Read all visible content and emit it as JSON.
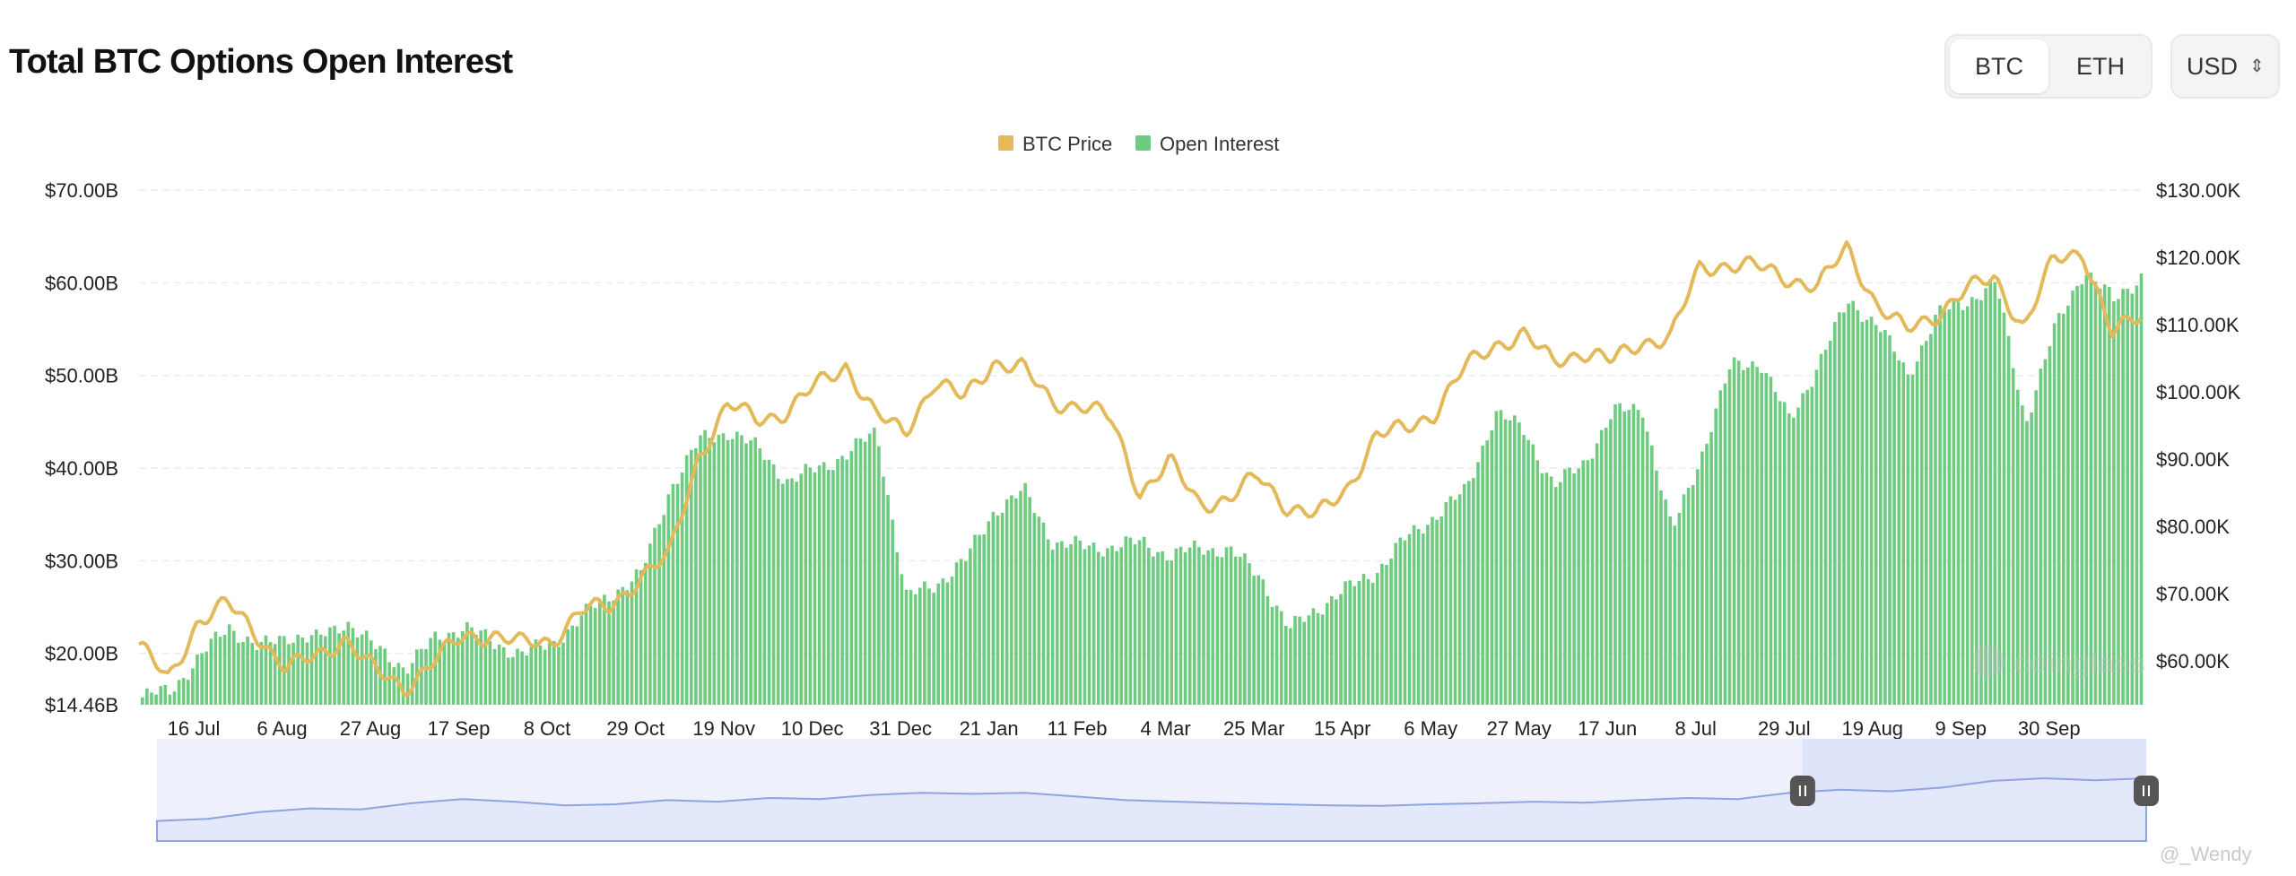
{
  "header": {
    "title": "Total BTC Options Open Interest",
    "assets": [
      "BTC",
      "ETH"
    ],
    "selected_asset": "BTC",
    "currency": "USD",
    "currency_icon": "chevron-updown-icon"
  },
  "watermark": {
    "brand": "coinglass",
    "credit": "@_Wendy"
  },
  "chart_data": {
    "type": "bar",
    "title": "Total BTC Options Open Interest",
    "legend": {
      "position": "top-center",
      "items": [
        "BTC Price",
        "Open Interest"
      ]
    },
    "colors": {
      "btc_price": "#e3b95a",
      "open_interest": "#6ecb80",
      "navigator": "#8fa3e0"
    },
    "grid": true,
    "x_tick_labels": [
      "16 Jul",
      "6 Aug",
      "27 Aug",
      "17 Sep",
      "8 Oct",
      "29 Oct",
      "19 Nov",
      "10 Dec",
      "31 Dec",
      "21 Jan",
      "11 Feb",
      "4 Mar",
      "25 Mar",
      "15 Apr",
      "6 May",
      "27 May",
      "17 Jun",
      "8 Jul",
      "29 Jul",
      "19 Aug",
      "9 Sep",
      "30 Sep"
    ],
    "y_left": {
      "label": "",
      "tick_labels": [
        "$70.00B",
        "$60.00B",
        "$50.00B",
        "$40.00B",
        "$30.00B",
        "$20.00B",
        "$14.46B"
      ],
      "ticks": [
        70,
        60,
        50,
        40,
        30,
        20,
        14.46
      ],
      "min": 14.46,
      "max": 70,
      "unit": "B USD"
    },
    "y_right": {
      "label": "",
      "tick_labels": [
        "$130.00K",
        "$120.00K",
        "$110.00K",
        "$100.00K",
        "$90.00K",
        "$80.00K",
        "$70.00K",
        "$60.00K"
      ],
      "ticks": [
        130,
        120,
        110,
        100,
        90,
        80,
        70,
        60
      ],
      "min": 53.5,
      "max": 130,
      "unit": "K USD"
    },
    "dates": [
      "2024-07-03",
      "2024-07-10",
      "2024-07-17",
      "2024-07-24",
      "2024-07-31",
      "2024-08-07",
      "2024-08-14",
      "2024-08-21",
      "2024-08-28",
      "2024-09-04",
      "2024-09-11",
      "2024-09-18",
      "2024-09-25",
      "2024-10-02",
      "2024-10-09",
      "2024-10-16",
      "2024-10-23",
      "2024-10-30",
      "2024-11-06",
      "2024-11-13",
      "2024-11-20",
      "2024-11-27",
      "2024-12-04",
      "2024-12-11",
      "2024-12-18",
      "2024-12-25",
      "2025-01-01",
      "2025-01-08",
      "2025-01-15",
      "2025-01-22",
      "2025-01-29",
      "2025-02-05",
      "2025-02-12",
      "2025-02-19",
      "2025-02-26",
      "2025-03-05",
      "2025-03-12",
      "2025-03-19",
      "2025-03-26",
      "2025-04-02",
      "2025-04-09",
      "2025-04-16",
      "2025-04-23",
      "2025-04-30",
      "2025-05-07",
      "2025-05-14",
      "2025-05-21",
      "2025-05-28",
      "2025-06-04",
      "2025-06-11",
      "2025-06-18",
      "2025-06-25",
      "2025-07-02",
      "2025-07-09",
      "2025-07-16",
      "2025-07-23",
      "2025-07-30",
      "2025-08-06",
      "2025-08-13",
      "2025-08-20",
      "2025-08-27",
      "2025-09-03",
      "2025-09-10",
      "2025-09-17",
      "2025-09-24",
      "2025-10-01",
      "2025-10-08",
      "2025-10-15",
      "2025-10-22"
    ],
    "series": [
      {
        "name": "Open Interest",
        "axis": "left",
        "type": "bar",
        "values": [
          15.2,
          16.0,
          19.5,
          23.0,
          20.5,
          22.0,
          21.5,
          23.5,
          20.5,
          18.5,
          21.5,
          23.0,
          21.0,
          20.0,
          21.0,
          24.0,
          26.5,
          28.5,
          38.0,
          43.0,
          44.0,
          42.0,
          38.5,
          40.0,
          41.5,
          44.0,
          26.0,
          27.5,
          30.0,
          35.5,
          37.5,
          32.0,
          31.5,
          31.5,
          32.0,
          30.5,
          31.5,
          31.0,
          28.5,
          22.5,
          25.0,
          27.0,
          29.0,
          32.5,
          35.0,
          37.5,
          46.0,
          44.0,
          38.0,
          40.5,
          46.0,
          46.5,
          33.0,
          41.5,
          51.0,
          51.5,
          45.0,
          51.5,
          58.0,
          55.5,
          50.0,
          56.5,
          58.0,
          60.0,
          45.0,
          55.0,
          61.5,
          58.0,
          61.0
        ]
      },
      {
        "name": "BTC Price",
        "axis": "right",
        "type": "line",
        "values": [
          62.5,
          57.0,
          66.0,
          68.5,
          64.0,
          59.0,
          60.5,
          63.5,
          58.5,
          56.0,
          60.0,
          63.5,
          64.0,
          62.5,
          63.0,
          67.5,
          68.0,
          72.5,
          75.5,
          90.5,
          98.0,
          96.0,
          97.0,
          101.0,
          104.0,
          96.5,
          94.0,
          101.5,
          99.0,
          104.5,
          103.5,
          98.5,
          98.0,
          96.0,
          85.0,
          89.5,
          83.5,
          84.0,
          87.5,
          83.0,
          81.5,
          85.5,
          93.5,
          94.5,
          97.0,
          103.5,
          107.0,
          108.5,
          104.5,
          106.0,
          104.5,
          107.5,
          108.0,
          118.5,
          119.0,
          118.5,
          117.0,
          115.5,
          121.5,
          113.0,
          109.0,
          111.5,
          115.0,
          117.0,
          109.5,
          119.5,
          121.0,
          108.5,
          111.5
        ]
      }
    ],
    "navigator": {
      "visible": true,
      "selected_start": "2025-06-30",
      "selected_end": "2025-10-22",
      "values": [
        0.18,
        0.22,
        0.35,
        0.42,
        0.4,
        0.52,
        0.6,
        0.55,
        0.48,
        0.5,
        0.58,
        0.55,
        0.62,
        0.6,
        0.68,
        0.72,
        0.7,
        0.72,
        0.65,
        0.58,
        0.55,
        0.52,
        0.5,
        0.48,
        0.47,
        0.5,
        0.52,
        0.55,
        0.53,
        0.58,
        0.62,
        0.6,
        0.72,
        0.78,
        0.75,
        0.82,
        0.95,
        1.0,
        0.96,
        1.0
      ]
    }
  }
}
